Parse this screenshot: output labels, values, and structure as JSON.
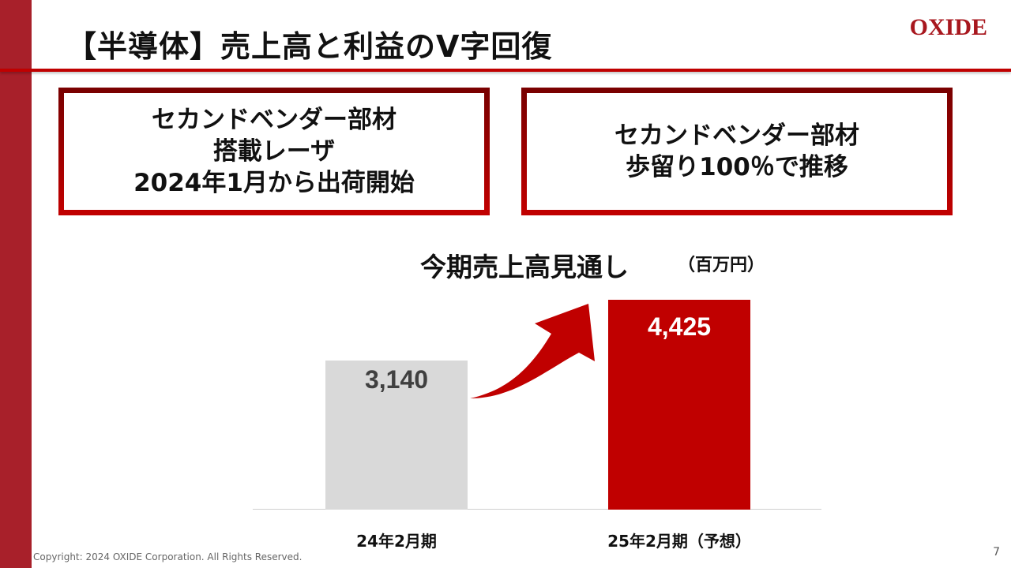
{
  "slide": {
    "title": "【半導体】売上高と利益のV字回復",
    "logo": "OXIDE",
    "page_number": "7",
    "footer": "Copyright: 2024 OXIDE Corporation. All Rights Reserved.",
    "accent_color": "#c00000",
    "sidebar_color": "#a8202a"
  },
  "callouts": [
    {
      "lines": [
        "セカンドベンダー部材",
        "搭載レーザ",
        "2024年1月から出荷開始"
      ]
    },
    {
      "lines": [
        "セカンドベンダー部材",
        "歩留り100％で推移"
      ]
    }
  ],
  "chart": {
    "title": "今期売上高見通し",
    "unit": "（百万円）"
  },
  "chart_data": {
    "type": "bar",
    "title": "今期売上高見通し",
    "ylabel": "（百万円）",
    "xlabel": "",
    "categories": [
      "24年2月期",
      "25年2月期（予想）"
    ],
    "values": [
      3140,
      4425
    ],
    "value_labels": [
      "3,140",
      "4,425"
    ],
    "colors": [
      "#d9d9d9",
      "#c00000"
    ],
    "label_colors": [
      "#404040",
      "#ffffff"
    ],
    "ylim": [
      0,
      4425
    ],
    "grid": false,
    "legend": "none",
    "annotations": [
      "upward curved arrow from 24年2月期 to 25年2月期（予想）"
    ]
  }
}
